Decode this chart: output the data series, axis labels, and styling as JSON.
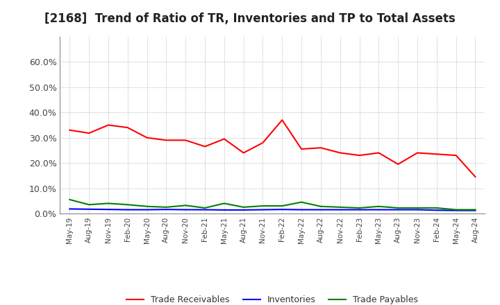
{
  "title": "[2168]  Trend of Ratio of TR, Inventories and TP to Total Assets",
  "x_labels": [
    "May-19",
    "Aug-19",
    "Nov-19",
    "Feb-20",
    "May-20",
    "Aug-20",
    "Nov-20",
    "Feb-21",
    "May-21",
    "Aug-21",
    "Nov-21",
    "Feb-22",
    "May-22",
    "Aug-22",
    "Nov-22",
    "Feb-23",
    "May-23",
    "Aug-23",
    "Nov-23",
    "Feb-24",
    "May-24",
    "Aug-24"
  ],
  "trade_receivables": [
    0.33,
    0.318,
    0.35,
    0.34,
    0.3,
    0.29,
    0.29,
    0.265,
    0.295,
    0.24,
    0.28,
    0.37,
    0.255,
    0.26,
    0.24,
    0.23,
    0.24,
    0.195,
    0.24,
    0.235,
    0.23,
    0.145
  ],
  "inventories": [
    0.018,
    0.017,
    0.016,
    0.015,
    0.015,
    0.016,
    0.015,
    0.015,
    0.014,
    0.014,
    0.015,
    0.016,
    0.015,
    0.015,
    0.015,
    0.015,
    0.015,
    0.015,
    0.015,
    0.013,
    0.012,
    0.012
  ],
  "trade_payables": [
    0.055,
    0.035,
    0.04,
    0.035,
    0.028,
    0.025,
    0.032,
    0.022,
    0.04,
    0.025,
    0.03,
    0.03,
    0.045,
    0.028,
    0.025,
    0.022,
    0.028,
    0.022,
    0.022,
    0.022,
    0.015,
    0.015
  ],
  "tr_color": "#FF0000",
  "inv_color": "#0000FF",
  "tp_color": "#008000",
  "ylim": [
    0.0,
    0.7
  ],
  "yticks": [
    0.0,
    0.1,
    0.2,
    0.3,
    0.4,
    0.5,
    0.6
  ],
  "background_color": "#FFFFFF",
  "plot_background": "#FFFFFF",
  "grid_color": "#999999",
  "title_fontsize": 12,
  "legend_labels": [
    "Trade Receivables",
    "Inventories",
    "Trade Payables"
  ]
}
